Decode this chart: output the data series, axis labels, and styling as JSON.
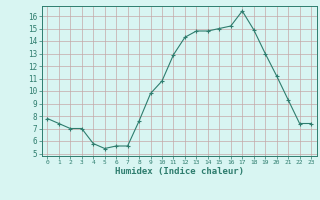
{
  "x": [
    0,
    1,
    2,
    3,
    4,
    5,
    6,
    7,
    8,
    9,
    10,
    11,
    12,
    13,
    14,
    15,
    16,
    17,
    18,
    19,
    20,
    21,
    22,
    23
  ],
  "y": [
    7.8,
    7.4,
    7.0,
    7.0,
    5.8,
    5.4,
    5.6,
    5.6,
    7.6,
    9.8,
    10.8,
    12.9,
    14.3,
    14.8,
    14.8,
    15.0,
    15.2,
    16.4,
    14.9,
    13.0,
    11.2,
    9.3,
    7.4,
    7.4
  ],
  "xlabel": "Humidex (Indice chaleur)",
  "xlim": [
    -0.5,
    23.5
  ],
  "ylim": [
    4.8,
    16.8
  ],
  "yticks": [
    5,
    6,
    7,
    8,
    9,
    10,
    11,
    12,
    13,
    14,
    15,
    16
  ],
  "xticks": [
    0,
    1,
    2,
    3,
    4,
    5,
    6,
    7,
    8,
    9,
    10,
    11,
    12,
    13,
    14,
    15,
    16,
    17,
    18,
    19,
    20,
    21,
    22,
    23
  ],
  "line_color": "#2e7d6e",
  "marker": "+",
  "bg_color": "#d8f5f2",
  "grid_color_h": "#c4a8a8",
  "grid_color_v": "#c4a8a8",
  "tick_color": "#2e7d6e",
  "label_color": "#2e7d6e"
}
